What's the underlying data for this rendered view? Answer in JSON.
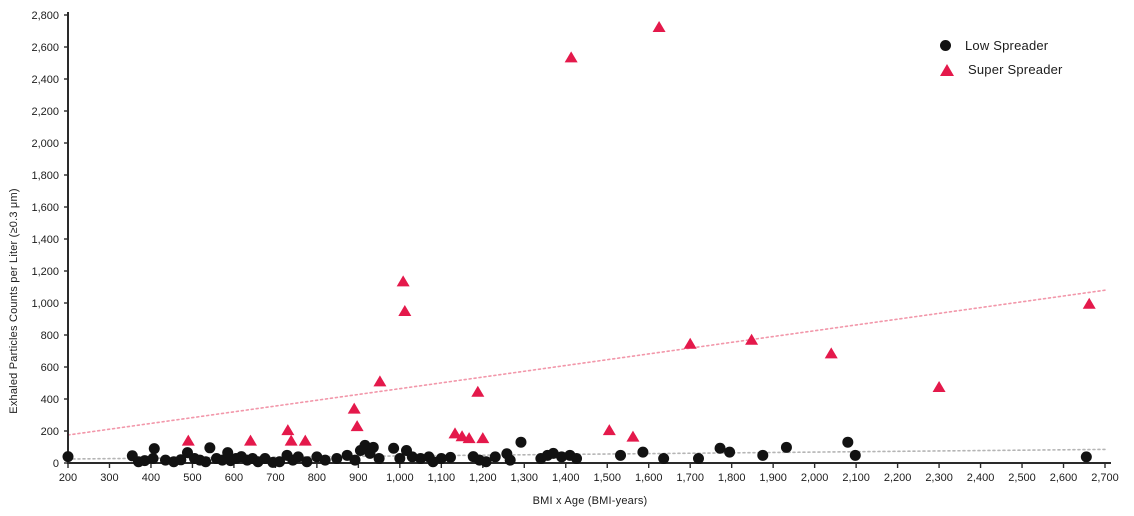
{
  "chart_data": {
    "type": "scatter",
    "title": "",
    "xlabel": "BMI x Age (BMI-years)",
    "ylabel": "Exhaled Particles Counts per Liter (≥0.3 μm)",
    "xlim": [
      200,
      2700
    ],
    "ylim": [
      0,
      2800
    ],
    "grid": false,
    "legend_position": "top-right",
    "x_tick_labels": [
      "200",
      "300",
      "400",
      "500",
      "600",
      "700",
      "800",
      "900",
      "1,000",
      "1,100",
      "1,200",
      "1,300",
      "1,400",
      "1,500",
      "1,600",
      "1,700",
      "1,800",
      "1,900",
      "2,000",
      "2,100",
      "2,200",
      "2,300",
      "2,400",
      "2,500",
      "2,600",
      "2,700"
    ],
    "x_tick_values": [
      200,
      300,
      400,
      500,
      600,
      700,
      800,
      900,
      1000,
      1100,
      1200,
      1300,
      1400,
      1500,
      1600,
      1700,
      1800,
      1900,
      2000,
      2100,
      2200,
      2300,
      2400,
      2500,
      2600,
      2700
    ],
    "y_tick_labels": [
      "0",
      "200",
      "400",
      "600",
      "800",
      "1,000",
      "1,200",
      "1,400",
      "1,600",
      "1,800",
      "2,000",
      "2,200",
      "2,400",
      "2,600",
      "2,800"
    ],
    "y_tick_values": [
      0,
      200,
      400,
      600,
      800,
      1000,
      1200,
      1400,
      1600,
      1800,
      2000,
      2200,
      2400,
      2600,
      2800
    ],
    "series": [
      {
        "name": "Low Spreader",
        "marker": "circle",
        "color": "#121212",
        "points": [
          [
            200,
            40
          ],
          [
            355,
            45
          ],
          [
            370,
            8
          ],
          [
            385,
            15
          ],
          [
            408,
            90
          ],
          [
            405,
            28
          ],
          [
            435,
            18
          ],
          [
            455,
            8
          ],
          [
            472,
            20
          ],
          [
            488,
            65
          ],
          [
            505,
            28
          ],
          [
            518,
            18
          ],
          [
            532,
            8
          ],
          [
            542,
            95
          ],
          [
            558,
            28
          ],
          [
            572,
            18
          ],
          [
            585,
            65
          ],
          [
            592,
            15
          ],
          [
            605,
            28
          ],
          [
            618,
            40
          ],
          [
            632,
            18
          ],
          [
            645,
            28
          ],
          [
            658,
            8
          ],
          [
            675,
            28
          ],
          [
            694,
            4
          ],
          [
            710,
            8
          ],
          [
            728,
            48
          ],
          [
            742,
            18
          ],
          [
            755,
            38
          ],
          [
            776,
            8
          ],
          [
            800,
            38
          ],
          [
            820,
            18
          ],
          [
            848,
            28
          ],
          [
            873,
            48
          ],
          [
            892,
            18
          ],
          [
            905,
            78
          ],
          [
            916,
            110
          ],
          [
            928,
            60
          ],
          [
            936,
            98
          ],
          [
            950,
            28
          ],
          [
            985,
            92
          ],
          [
            1000,
            28
          ],
          [
            1016,
            78
          ],
          [
            1030,
            38
          ],
          [
            1050,
            28
          ],
          [
            1070,
            38
          ],
          [
            1080,
            8
          ],
          [
            1100,
            28
          ],
          [
            1122,
            35
          ],
          [
            1177,
            40
          ],
          [
            1192,
            18
          ],
          [
            1208,
            8
          ],
          [
            1230,
            38
          ],
          [
            1258,
            58
          ],
          [
            1266,
            18
          ],
          [
            1292,
            130
          ],
          [
            1340,
            28
          ],
          [
            1356,
            48
          ],
          [
            1370,
            60
          ],
          [
            1390,
            38
          ],
          [
            1410,
            48
          ],
          [
            1426,
            28
          ],
          [
            1532,
            48
          ],
          [
            1586,
            68
          ],
          [
            1636,
            28
          ],
          [
            1720,
            28
          ],
          [
            1772,
            92
          ],
          [
            1795,
            68
          ],
          [
            1875,
            48
          ],
          [
            1932,
            98
          ],
          [
            2080,
            130
          ],
          [
            2098,
            48
          ],
          [
            2655,
            38
          ]
        ]
      },
      {
        "name": "Super Spreader",
        "marker": "triangle",
        "color": "#e4194b",
        "points": [
          [
            490,
            135
          ],
          [
            640,
            135
          ],
          [
            730,
            200
          ],
          [
            738,
            135
          ],
          [
            772,
            135
          ],
          [
            890,
            335
          ],
          [
            897,
            225
          ],
          [
            952,
            505
          ],
          [
            1008,
            1130
          ],
          [
            1012,
            945
          ],
          [
            1133,
            180
          ],
          [
            1150,
            162
          ],
          [
            1167,
            150
          ],
          [
            1188,
            440
          ],
          [
            1200,
            150
          ],
          [
            1413,
            2530
          ],
          [
            1505,
            200
          ],
          [
            1562,
            160
          ],
          [
            1625,
            2720
          ],
          [
            1700,
            740
          ],
          [
            1848,
            765
          ],
          [
            2040,
            680
          ],
          [
            2300,
            470
          ],
          [
            2662,
            990
          ]
        ]
      }
    ],
    "trendlines": [
      {
        "series": "Low Spreader",
        "style": "dotted",
        "color": "#b5b5b5",
        "from": [
          200,
          25
        ],
        "to": [
          2700,
          85
        ]
      },
      {
        "series": "Super Spreader",
        "style": "dotted",
        "color": "#f297aa",
        "from": [
          200,
          175
        ],
        "to": [
          2700,
          1080
        ]
      }
    ]
  },
  "legend": {
    "items": [
      {
        "label": "Low Spreader",
        "marker": "circle"
      },
      {
        "label": "Super Spreader",
        "marker": "triangle"
      }
    ]
  },
  "colors": {
    "axis": "#2a2a2a",
    "tick_text": "#1c1c1c",
    "low_spreader": "#121212",
    "super_spreader": "#e4194b",
    "low_trend": "#b5b5b5",
    "super_trend": "#f297aa"
  }
}
